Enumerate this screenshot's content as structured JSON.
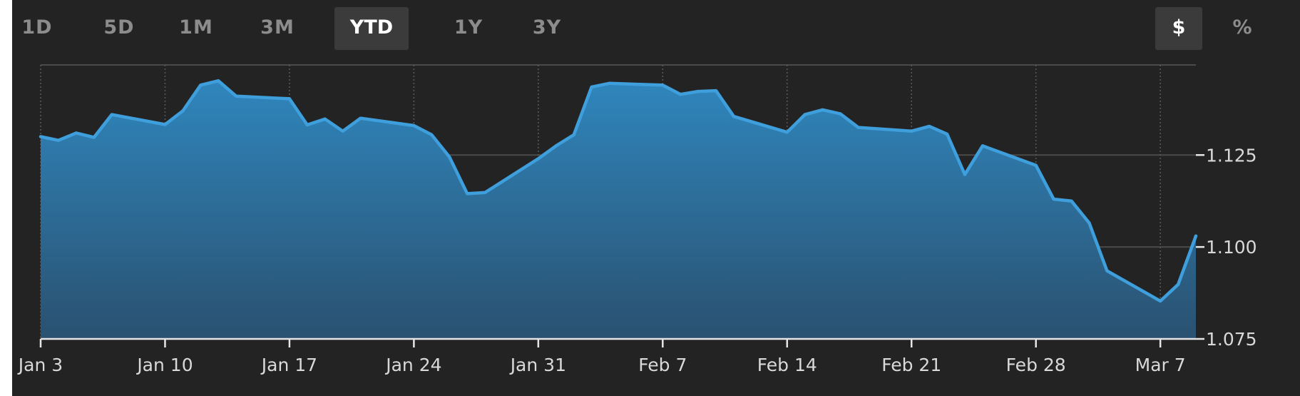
{
  "range_buttons": [
    {
      "label": "1D",
      "active": false
    },
    {
      "label": "5D",
      "active": false
    },
    {
      "label": "1M",
      "active": false
    },
    {
      "label": "3M",
      "active": false
    },
    {
      "label": "YTD",
      "active": true
    },
    {
      "label": "1Y",
      "active": false
    },
    {
      "label": "3Y",
      "active": false
    }
  ],
  "unit_buttons": [
    {
      "label": "$",
      "active": true
    },
    {
      "label": "%",
      "active": false
    }
  ],
  "colors": {
    "background": "#232323",
    "line": "#3f9fdc",
    "area_top": "#2f86bd",
    "area_bottom": "#2a5170",
    "gridline": "#4a4a4a",
    "axis_text": "#d9d9d9"
  },
  "chart_data": {
    "type": "area",
    "title": "",
    "xlabel": "",
    "ylabel": "",
    "x_tick_labels": [
      "Jan 3",
      "Jan 10",
      "Jan 17",
      "Jan 24",
      "Jan 31",
      "Feb 7",
      "Feb 14",
      "Feb 21",
      "Feb 28",
      "Mar 7"
    ],
    "y_tick_labels": [
      "1.125",
      "1.100",
      "1.075"
    ],
    "ylim": [
      1.075,
      1.1495
    ],
    "y_axis_side": "right",
    "grid": true,
    "legend": "none",
    "series": [
      {
        "x": [
          "2022-01-03",
          "2022-01-04",
          "2022-01-05",
          "2022-01-06",
          "2022-01-07",
          "2022-01-10",
          "2022-01-11",
          "2022-01-12",
          "2022-01-13",
          "2022-01-14",
          "2022-01-17",
          "2022-01-18",
          "2022-01-19",
          "2022-01-20",
          "2022-01-21",
          "2022-01-24",
          "2022-01-25",
          "2022-01-26",
          "2022-01-27",
          "2022-01-28",
          "2022-01-31",
          "2022-02-01",
          "2022-02-02",
          "2022-02-03",
          "2022-02-04",
          "2022-02-07",
          "2022-02-08",
          "2022-02-09",
          "2022-02-10",
          "2022-02-11",
          "2022-02-14",
          "2022-02-15",
          "2022-02-16",
          "2022-02-17",
          "2022-02-18",
          "2022-02-21",
          "2022-02-22",
          "2022-02-23",
          "2022-02-24",
          "2022-02-25",
          "2022-02-28",
          "2022-03-01",
          "2022-03-02",
          "2022-03-03",
          "2022-03-04",
          "2022-03-07",
          "2022-03-08",
          "2022-03-09"
        ],
        "y": [
          1.13,
          1.129,
          1.131,
          1.1298,
          1.136,
          1.1333,
          1.137,
          1.144,
          1.1452,
          1.141,
          1.1403,
          1.1332,
          1.1348,
          1.1315,
          1.135,
          1.133,
          1.1305,
          1.1245,
          1.1145,
          1.1148,
          1.124,
          1.1275,
          1.1305,
          1.1435,
          1.1445,
          1.144,
          1.1415,
          1.1423,
          1.1425,
          1.1355,
          1.1312,
          1.136,
          1.1373,
          1.1362,
          1.1325,
          1.1315,
          1.1328,
          1.1307,
          1.1197,
          1.1275,
          1.1222,
          1.113,
          1.1125,
          1.1065,
          1.0935,
          1.0853,
          1.0898,
          1.103
        ]
      }
    ]
  }
}
